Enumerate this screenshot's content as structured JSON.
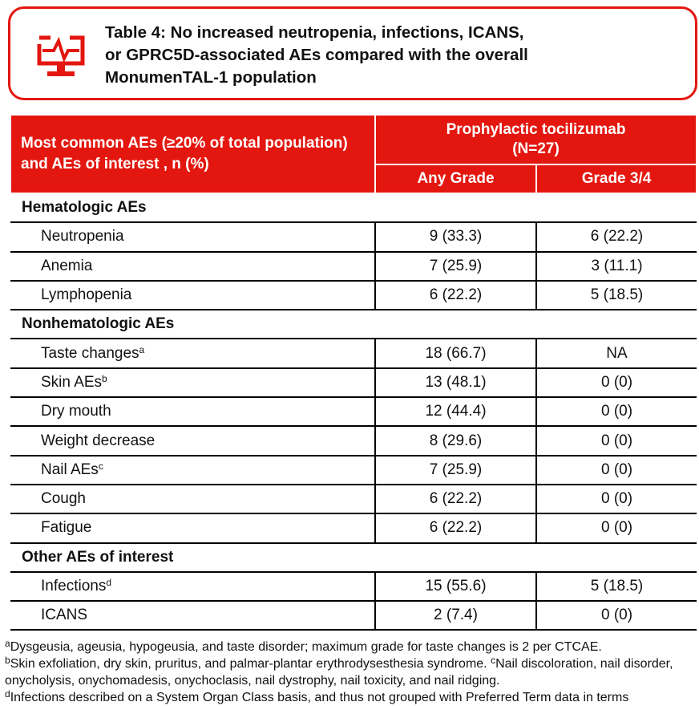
{
  "header": {
    "title_lines": [
      "Table 4: No increased neutropenia, infections, ICANS,",
      "or GPRC5D-associated AEs compared with the overall",
      "MonumenTAL-1 population"
    ]
  },
  "table": {
    "col1_header": "Most common AEs (≥20% of total population) and AEs of interest , n (%)",
    "group_header_lines": [
      "Prophylactic tocilizumab",
      "(N=27)"
    ],
    "sub_headers": [
      "Any Grade",
      "Grade 3/4"
    ],
    "sections": [
      {
        "title": "Hematologic AEs",
        "rows": [
          {
            "label": "Neutropenia",
            "any": "9 (33.3)",
            "g34": "6 (22.2)"
          },
          {
            "label": "Anemia",
            "any": "7 (25.9)",
            "g34": "3 (11.1)"
          },
          {
            "label": "Lymphopenia",
            "any": "6 (22.2)",
            "g34": "5 (18.5)"
          }
        ]
      },
      {
        "title": "Nonhematologic AEs",
        "rows": [
          {
            "label": "Taste changes",
            "sup": "a",
            "any": "18 (66.7)",
            "g34": "NA"
          },
          {
            "label": "Skin AEs",
            "sup": "b",
            "any": "13 (48.1)",
            "g34": "0 (0)"
          },
          {
            "label": "Dry mouth",
            "any": "12 (44.4)",
            "g34": "0 (0)"
          },
          {
            "label": "Weight decrease",
            "any": "8 (29.6)",
            "g34": "0 (0)"
          },
          {
            "label": "Nail AEs",
            "sup": "c",
            "any": "7 (25.9)",
            "g34": "0 (0)"
          },
          {
            "label": "Cough",
            "any": "6 (22.2)",
            "g34": "0 (0)"
          },
          {
            "label": "Fatigue",
            "any": "6 (22.2)",
            "g34": "0 (0)"
          }
        ]
      },
      {
        "title": "Other AEs of interest",
        "rows": [
          {
            "label": "Infections",
            "sup": "d",
            "any": "15 (55.6)",
            "g34": "5 (18.5)"
          },
          {
            "label": "ICANS",
            "any": "2 (7.4)",
            "g34": "0 (0)"
          }
        ]
      }
    ]
  },
  "footnotes": [
    {
      "mark": "a",
      "text": "Dysgeusia, ageusia, hypogeusia, and taste disorder; maximum grade for taste changes is 2 per CTCAE."
    },
    {
      "mark": "b",
      "text": "Skin exfoliation, dry skin, pruritus, and palmar-plantar erythrodysesthesia syndrome. "
    },
    {
      "mark": "c",
      "text": "Nail discoloration, nail disorder, onycholysis, onychomadesis, onychoclasis, nail dystrophy, nail toxicity, and nail ridging."
    },
    {
      "mark": "d",
      "text": "Infections described on a System Organ Class basis, and thus not grouped with Preferred Term data in terms"
    }
  ]
}
